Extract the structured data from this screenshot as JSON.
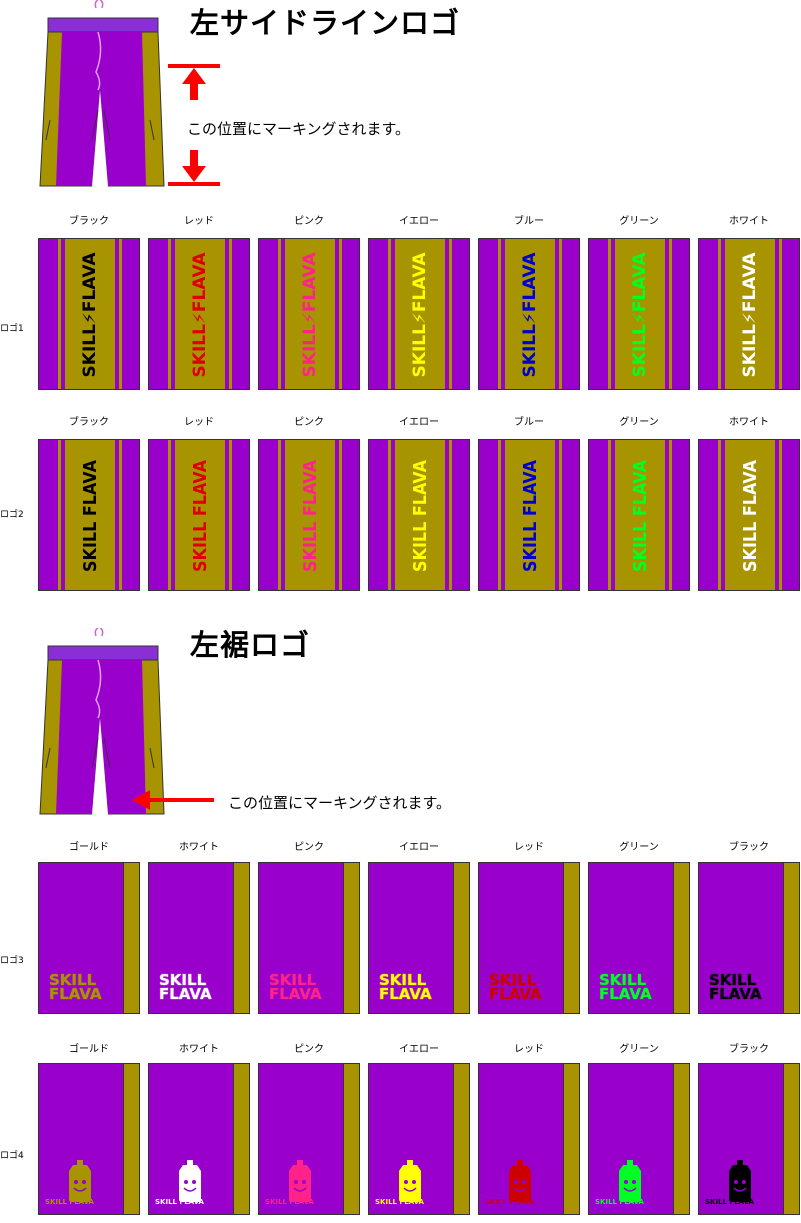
{
  "section1": {
    "title": "左サイドラインロゴ",
    "note": "この位置にマーキングされます。"
  },
  "section2": {
    "title": "左裾ロゴ",
    "note": "この位置にマーキングされます。"
  },
  "rows": [
    {
      "label": "ロゴ1",
      "logo_text": "SKILL⚡FLAVA",
      "colors": [
        {
          "name": "ブラック",
          "hex": "#000000"
        },
        {
          "name": "レッド",
          "hex": "#dd0000"
        },
        {
          "name": "ピンク",
          "hex": "#ff2288"
        },
        {
          "name": "イエロー",
          "hex": "#ffff00"
        },
        {
          "name": "ブルー",
          "hex": "#0000cc"
        },
        {
          "name": "グリーン",
          "hex": "#00ff22"
        },
        {
          "name": "ホワイト",
          "hex": "#ffffff"
        }
      ]
    },
    {
      "label": "ロゴ2",
      "logo_text": "SKILL FLAVA",
      "colors": [
        {
          "name": "ブラック",
          "hex": "#000000"
        },
        {
          "name": "レッド",
          "hex": "#dd0000"
        },
        {
          "name": "ピンク",
          "hex": "#ff2288"
        },
        {
          "name": "イエロー",
          "hex": "#ffff00"
        },
        {
          "name": "ブルー",
          "hex": "#0000cc"
        },
        {
          "name": "グリーン",
          "hex": "#00ff22"
        },
        {
          "name": "ホワイト",
          "hex": "#ffffff"
        }
      ]
    },
    {
      "label": "ロゴ3",
      "logo_text": "SKILL FLAVA",
      "colors": [
        {
          "name": "ゴールド",
          "hex": "#a89400"
        },
        {
          "name": "ホワイト",
          "hex": "#ffffff"
        },
        {
          "name": "ピンク",
          "hex": "#ff2288"
        },
        {
          "name": "イエロー",
          "hex": "#ffff00"
        },
        {
          "name": "レッド",
          "hex": "#cc0000"
        },
        {
          "name": "グリーン",
          "hex": "#00ff22"
        },
        {
          "name": "ブラック",
          "hex": "#000000"
        }
      ]
    },
    {
      "label": "ロゴ4",
      "logo_text": "SKILL FLAVA",
      "colors": [
        {
          "name": "ゴールド",
          "hex": "#a89400"
        },
        {
          "name": "ホワイト",
          "hex": "#ffffff"
        },
        {
          "name": "ピンク",
          "hex": "#ff2288"
        },
        {
          "name": "イエロー",
          "hex": "#ffff00"
        },
        {
          "name": "レッド",
          "hex": "#cc0000"
        },
        {
          "name": "グリーン",
          "hex": "#00ff22"
        },
        {
          "name": "ブラック",
          "hex": "#000000"
        }
      ]
    }
  ],
  "theme": {
    "purple": "#9900cc",
    "gold": "#a89400",
    "arrow_red": "#ff0000"
  }
}
